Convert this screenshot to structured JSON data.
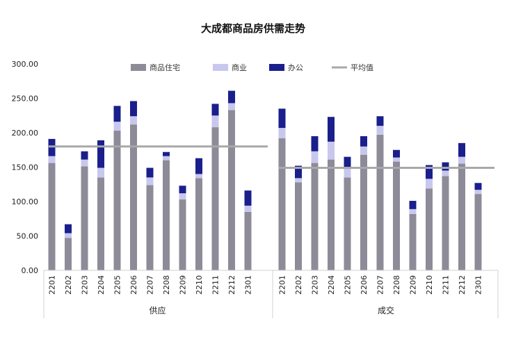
{
  "chart_data": {
    "type": "bar",
    "title": "大成都商品房供需走势",
    "legend": [
      {
        "name": "商品住宅",
        "color": "#8E8B98",
        "kind": "bar"
      },
      {
        "name": "商业",
        "color": "#C8C7EE",
        "kind": "bar"
      },
      {
        "name": "办公",
        "color": "#1A1F8C",
        "kind": "bar"
      },
      {
        "name": "平均值",
        "color": "#A8A8A8",
        "kind": "line"
      }
    ],
    "legend_position": "top",
    "ylim": [
      0,
      300
    ],
    "y_ticks": [
      "0.00",
      "50.00",
      "100.00",
      "150.00",
      "200.00",
      "250.00",
      "300.00"
    ],
    "groups": [
      {
        "name": "供应",
        "categories": [
          "2201",
          "2202",
          "2203",
          "2204",
          "2205",
          "2206",
          "2207",
          "2208",
          "2209",
          "2210",
          "2211",
          "2212",
          "2301"
        ],
        "series": [
          {
            "name": "商品住宅",
            "values": [
              156,
              47,
              151,
              135,
              203,
              212,
              124,
              160,
              103,
              134,
              208,
              233,
              85
            ]
          },
          {
            "name": "商业",
            "values": [
              10,
              7,
              10,
              14,
              13,
              12,
              11,
              6,
              9,
              6,
              17,
              10,
              9
            ]
          },
          {
            "name": "办公",
            "values": [
              25,
              13,
              12,
              40,
              23,
              22,
              14,
              6,
              11,
              23,
              17,
              18,
              22
            ]
          }
        ],
        "average": 180
      },
      {
        "name": "成交",
        "categories": [
          "2201",
          "2202",
          "2203",
          "2204",
          "2205",
          "2206",
          "2207",
          "2208",
          "2209",
          "2210",
          "2211",
          "2212",
          "2301"
        ],
        "series": [
          {
            "name": "商品住宅",
            "values": [
              192,
              128,
              156,
              161,
              135,
              168,
              197,
              158,
              82,
              119,
              137,
              155,
              111
            ]
          },
          {
            "name": "商业",
            "values": [
              15,
              6,
              17,
              26,
              15,
              12,
              13,
              6,
              7,
              14,
              8,
              10,
              6
            ]
          },
          {
            "name": "办公",
            "values": [
              28,
              18,
              22,
              36,
              15,
              15,
              14,
              11,
              12,
              20,
              12,
              20,
              10
            ]
          }
        ],
        "average": 149
      }
    ]
  }
}
